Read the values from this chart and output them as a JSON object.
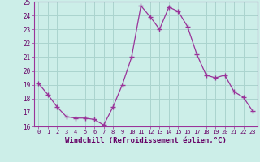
{
  "xlabel": "Windchill (Refroidissement éolien,°C)",
  "xlim": [
    -0.5,
    23.5
  ],
  "ylim": [
    16,
    25
  ],
  "yticks": [
    16,
    17,
    18,
    19,
    20,
    21,
    22,
    23,
    24,
    25
  ],
  "xticks": [
    0,
    1,
    2,
    3,
    4,
    5,
    6,
    7,
    8,
    9,
    10,
    11,
    12,
    13,
    14,
    15,
    16,
    17,
    18,
    19,
    20,
    21,
    22,
    23
  ],
  "bg_color": "#cceee8",
  "grid_color": "#aad4ce",
  "line_color": "#993399",
  "marker": "+",
  "data_x": [
    0,
    1,
    2,
    3,
    4,
    5,
    6,
    7,
    8,
    9,
    10,
    11,
    12,
    13,
    14,
    15,
    16,
    17,
    18,
    19,
    20,
    21,
    22,
    23
  ],
  "data_y": [
    19.1,
    18.3,
    17.4,
    16.7,
    16.6,
    16.6,
    16.5,
    16.1,
    17.4,
    19.0,
    21.0,
    24.7,
    23.9,
    23.0,
    24.6,
    24.3,
    23.2,
    21.2,
    19.7,
    19.5,
    19.7,
    18.5,
    18.1,
    17.1
  ]
}
